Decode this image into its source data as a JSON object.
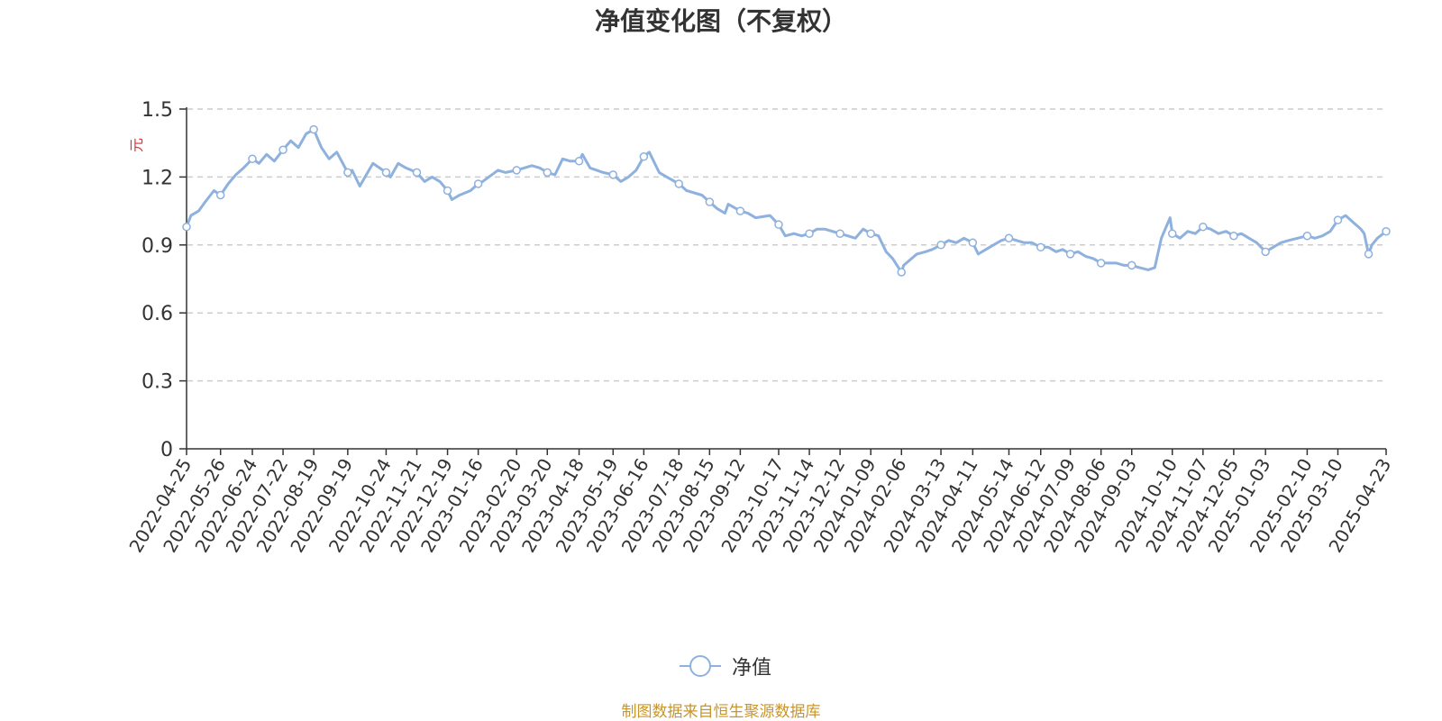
{
  "colors": {
    "series": "#8eb1dd",
    "grid": "#cccccc",
    "axis": "#333333",
    "ylabel": "#e03030",
    "source": "#c8952b"
  },
  "legend": {
    "icon": "circle-line-marker-icon"
  },
  "footer": {
    "source_text": "制图数据来自恒生聚源数据库"
  },
  "chart_data": {
    "type": "line",
    "title": "净值变化图（不复权）",
    "ylabel": "元",
    "ylim": [
      0,
      1.5
    ],
    "yticks": [
      0,
      0.3,
      0.6,
      0.9,
      1.2,
      1.5
    ],
    "grid": "horizontal dashed",
    "legend_position": "bottom-center",
    "x_range": [
      "2022-04-25",
      "2025-04-23"
    ],
    "xticks": [
      "2022-04-25",
      "2022-05-26",
      "2022-06-24",
      "2022-07-22",
      "2022-08-19",
      "2022-09-19",
      "2022-10-24",
      "2022-11-21",
      "2022-12-19",
      "2023-01-16",
      "2023-02-20",
      "2023-03-20",
      "2023-04-18",
      "2023-05-19",
      "2023-06-16",
      "2023-07-18",
      "2023-08-15",
      "2023-09-12",
      "2023-10-17",
      "2023-11-14",
      "2023-12-12",
      "2024-01-09",
      "2024-02-06",
      "2024-03-13",
      "2024-04-11",
      "2024-05-14",
      "2024-06-12",
      "2024-07-09",
      "2024-08-06",
      "2024-09-03",
      "2024-10-10",
      "2024-11-07",
      "2024-12-05",
      "2025-01-03",
      "2025-02-10",
      "2025-03-10",
      "2025-04-23"
    ],
    "series": [
      {
        "name": "净值",
        "points": [
          [
            "2022-04-25",
            0.98
          ],
          [
            "2022-04-29",
            1.03
          ],
          [
            "2022-05-06",
            1.05
          ],
          [
            "2022-05-12",
            1.09
          ],
          [
            "2022-05-20",
            1.14
          ],
          [
            "2022-05-26",
            1.12
          ],
          [
            "2022-06-02",
            1.17
          ],
          [
            "2022-06-09",
            1.21
          ],
          [
            "2022-06-16",
            1.24
          ],
          [
            "2022-06-24",
            1.28
          ],
          [
            "2022-06-30",
            1.26
          ],
          [
            "2022-07-07",
            1.3
          ],
          [
            "2022-07-14",
            1.27
          ],
          [
            "2022-07-22",
            1.32
          ],
          [
            "2022-07-29",
            1.36
          ],
          [
            "2022-08-05",
            1.33
          ],
          [
            "2022-08-12",
            1.39
          ],
          [
            "2022-08-19",
            1.41
          ],
          [
            "2022-08-26",
            1.33
          ],
          [
            "2022-09-02",
            1.28
          ],
          [
            "2022-09-09",
            1.31
          ],
          [
            "2022-09-19",
            1.22
          ],
          [
            "2022-09-23",
            1.23
          ],
          [
            "2022-09-30",
            1.16
          ],
          [
            "2022-10-12",
            1.26
          ],
          [
            "2022-10-18",
            1.24
          ],
          [
            "2022-10-24",
            1.22
          ],
          [
            "2022-10-28",
            1.2
          ],
          [
            "2022-11-04",
            1.26
          ],
          [
            "2022-11-11",
            1.24
          ],
          [
            "2022-11-21",
            1.22
          ],
          [
            "2022-11-28",
            1.18
          ],
          [
            "2022-12-05",
            1.2
          ],
          [
            "2022-12-12",
            1.18
          ],
          [
            "2022-12-19",
            1.14
          ],
          [
            "2022-12-23",
            1.1
          ],
          [
            "2022-12-30",
            1.12
          ],
          [
            "2023-01-09",
            1.14
          ],
          [
            "2023-01-16",
            1.17
          ],
          [
            "2023-01-20",
            1.18
          ],
          [
            "2023-02-03",
            1.23
          ],
          [
            "2023-02-10",
            1.22
          ],
          [
            "2023-02-20",
            1.23
          ],
          [
            "2023-02-27",
            1.24
          ],
          [
            "2023-03-06",
            1.25
          ],
          [
            "2023-03-13",
            1.24
          ],
          [
            "2023-03-20",
            1.22
          ],
          [
            "2023-03-27",
            1.21
          ],
          [
            "2023-04-03",
            1.28
          ],
          [
            "2023-04-10",
            1.27
          ],
          [
            "2023-04-18",
            1.27
          ],
          [
            "2023-04-21",
            1.3
          ],
          [
            "2023-04-28",
            1.24
          ],
          [
            "2023-05-10",
            1.22
          ],
          [
            "2023-05-19",
            1.21
          ],
          [
            "2023-05-26",
            1.18
          ],
          [
            "2023-06-02",
            1.2
          ],
          [
            "2023-06-09",
            1.23
          ],
          [
            "2023-06-16",
            1.29
          ],
          [
            "2023-06-21",
            1.31
          ],
          [
            "2023-06-30",
            1.22
          ],
          [
            "2023-07-07",
            1.2
          ],
          [
            "2023-07-18",
            1.17
          ],
          [
            "2023-07-25",
            1.14
          ],
          [
            "2023-08-01",
            1.13
          ],
          [
            "2023-08-08",
            1.12
          ],
          [
            "2023-08-15",
            1.09
          ],
          [
            "2023-08-22",
            1.06
          ],
          [
            "2023-08-29",
            1.04
          ],
          [
            "2023-09-01",
            1.08
          ],
          [
            "2023-09-12",
            1.05
          ],
          [
            "2023-09-19",
            1.04
          ],
          [
            "2023-09-26",
            1.02
          ],
          [
            "2023-10-09",
            1.03
          ],
          [
            "2023-10-17",
            0.99
          ],
          [
            "2023-10-23",
            0.94
          ],
          [
            "2023-10-31",
            0.95
          ],
          [
            "2023-11-07",
            0.94
          ],
          [
            "2023-11-14",
            0.95
          ],
          [
            "2023-11-21",
            0.97
          ],
          [
            "2023-11-28",
            0.97
          ],
          [
            "2023-12-05",
            0.96
          ],
          [
            "2023-12-12",
            0.95
          ],
          [
            "2023-12-19",
            0.94
          ],
          [
            "2023-12-26",
            0.93
          ],
          [
            "2024-01-02",
            0.97
          ],
          [
            "2024-01-09",
            0.95
          ],
          [
            "2024-01-16",
            0.94
          ],
          [
            "2024-01-23",
            0.87
          ],
          [
            "2024-01-29",
            0.84
          ],
          [
            "2024-02-06",
            0.78
          ],
          [
            "2024-02-08",
            0.81
          ],
          [
            "2024-02-20",
            0.86
          ],
          [
            "2024-02-28",
            0.87
          ],
          [
            "2024-03-05",
            0.88
          ],
          [
            "2024-03-13",
            0.9
          ],
          [
            "2024-03-20",
            0.92
          ],
          [
            "2024-03-27",
            0.91
          ],
          [
            "2024-04-03",
            0.93
          ],
          [
            "2024-04-11",
            0.91
          ],
          [
            "2024-04-16",
            0.86
          ],
          [
            "2024-04-23",
            0.88
          ],
          [
            "2024-04-30",
            0.9
          ],
          [
            "2024-05-07",
            0.92
          ],
          [
            "2024-05-14",
            0.93
          ],
          [
            "2024-05-21",
            0.92
          ],
          [
            "2024-05-28",
            0.91
          ],
          [
            "2024-06-04",
            0.91
          ],
          [
            "2024-06-12",
            0.89
          ],
          [
            "2024-06-19",
            0.89
          ],
          [
            "2024-06-26",
            0.87
          ],
          [
            "2024-07-02",
            0.88
          ],
          [
            "2024-07-09",
            0.86
          ],
          [
            "2024-07-16",
            0.87
          ],
          [
            "2024-07-23",
            0.85
          ],
          [
            "2024-07-30",
            0.84
          ],
          [
            "2024-08-06",
            0.82
          ],
          [
            "2024-08-13",
            0.82
          ],
          [
            "2024-08-20",
            0.82
          ],
          [
            "2024-08-27",
            0.81
          ],
          [
            "2024-09-03",
            0.81
          ],
          [
            "2024-09-10",
            0.8
          ],
          [
            "2024-09-18",
            0.79
          ],
          [
            "2024-09-24",
            0.8
          ],
          [
            "2024-09-30",
            0.93
          ],
          [
            "2024-10-08",
            1.02
          ],
          [
            "2024-10-10",
            0.95
          ],
          [
            "2024-10-17",
            0.93
          ],
          [
            "2024-10-24",
            0.96
          ],
          [
            "2024-10-31",
            0.95
          ],
          [
            "2024-11-07",
            0.98
          ],
          [
            "2024-11-14",
            0.97
          ],
          [
            "2024-11-21",
            0.95
          ],
          [
            "2024-11-28",
            0.96
          ],
          [
            "2024-12-05",
            0.94
          ],
          [
            "2024-12-12",
            0.95
          ],
          [
            "2024-12-19",
            0.93
          ],
          [
            "2024-12-26",
            0.91
          ],
          [
            "2025-01-03",
            0.87
          ],
          [
            "2025-01-10",
            0.89
          ],
          [
            "2025-01-17",
            0.91
          ],
          [
            "2025-01-24",
            0.92
          ],
          [
            "2025-02-10",
            0.94
          ],
          [
            "2025-02-17",
            0.93
          ],
          [
            "2025-02-24",
            0.94
          ],
          [
            "2025-03-03",
            0.96
          ],
          [
            "2025-03-10",
            1.01
          ],
          [
            "2025-03-17",
            1.03
          ],
          [
            "2025-03-24",
            1.0
          ],
          [
            "2025-03-31",
            0.97
          ],
          [
            "2025-04-03",
            0.95
          ],
          [
            "2025-04-07",
            0.86
          ],
          [
            "2025-04-10",
            0.9
          ],
          [
            "2025-04-15",
            0.93
          ],
          [
            "2025-04-23",
            0.96
          ]
        ],
        "markers": [
          "2022-04-25",
          "2022-05-26",
          "2022-06-24",
          "2022-07-22",
          "2022-08-19",
          "2022-09-19",
          "2022-10-24",
          "2022-11-21",
          "2022-12-19",
          "2023-01-16",
          "2023-02-20",
          "2023-03-20",
          "2023-04-18",
          "2023-05-19",
          "2023-06-16",
          "2023-07-18",
          "2023-08-15",
          "2023-09-12",
          "2023-10-17",
          "2023-11-14",
          "2023-12-12",
          "2024-01-09",
          "2024-02-06",
          "2024-03-13",
          "2024-04-11",
          "2024-05-14",
          "2024-06-12",
          "2024-07-09",
          "2024-08-06",
          "2024-09-03",
          "2024-10-10",
          "2024-11-07",
          "2024-12-05",
          "2025-01-03",
          "2025-02-10",
          "2025-03-10",
          "2025-04-07",
          "2025-04-23"
        ]
      }
    ]
  }
}
